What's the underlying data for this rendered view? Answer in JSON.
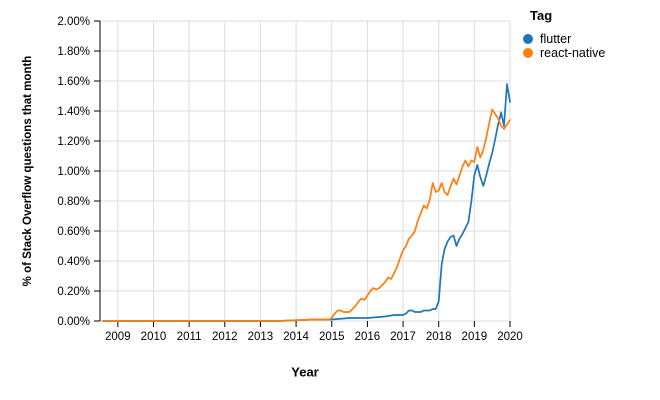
{
  "chart_data": {
    "type": "line",
    "title": "",
    "xlabel": "Year",
    "ylabel": "% of Stack Overflow questions that month",
    "xlim": [
      2008.5,
      2020
    ],
    "ylim": [
      0,
      2
    ],
    "grid": true,
    "x_ticks": [
      {
        "value": 2009,
        "label": "2009"
      },
      {
        "value": 2010,
        "label": "2010"
      },
      {
        "value": 2011,
        "label": "2011"
      },
      {
        "value": 2012,
        "label": "2012"
      },
      {
        "value": 2013,
        "label": "2013"
      },
      {
        "value": 2014,
        "label": "2014"
      },
      {
        "value": 2015,
        "label": "2015"
      },
      {
        "value": 2016,
        "label": "2016"
      },
      {
        "value": 2017,
        "label": "2017"
      },
      {
        "value": 2018,
        "label": "2018"
      },
      {
        "value": 2019,
        "label": "2019"
      },
      {
        "value": 2020,
        "label": "2020"
      }
    ],
    "y_ticks": [
      {
        "value": 0.0,
        "label": "0.00%"
      },
      {
        "value": 0.2,
        "label": "0.20%"
      },
      {
        "value": 0.4,
        "label": "0.40%"
      },
      {
        "value": 0.6,
        "label": "0.60%"
      },
      {
        "value": 0.8,
        "label": "0.80%"
      },
      {
        "value": 1.0,
        "label": "1.00%"
      },
      {
        "value": 1.2,
        "label": "1.20%"
      },
      {
        "value": 1.4,
        "label": "1.40%"
      },
      {
        "value": 1.6,
        "label": "1.60%"
      },
      {
        "value": 1.8,
        "label": "1.80%"
      },
      {
        "value": 2.0,
        "label": "2.00%"
      }
    ],
    "legend": {
      "title": "Tag",
      "position": "top-right",
      "entries": [
        {
          "label": "flutter",
          "color": "#1f77b4"
        },
        {
          "label": "react-native",
          "color": "#ff7f0e"
        }
      ]
    },
    "series": [
      {
        "name": "flutter",
        "color": "#1f77b4",
        "points": [
          [
            2008.58,
            0.0
          ],
          [
            2009.5,
            0.0
          ],
          [
            2010.5,
            0.0
          ],
          [
            2011.5,
            0.0
          ],
          [
            2012.5,
            0.0
          ],
          [
            2013.5,
            0.0
          ],
          [
            2014.5,
            0.01
          ],
          [
            2015.0,
            0.01
          ],
          [
            2015.5,
            0.02
          ],
          [
            2016.0,
            0.02
          ],
          [
            2016.5,
            0.03
          ],
          [
            2016.75,
            0.04
          ],
          [
            2017.0,
            0.04
          ],
          [
            2017.083,
            0.05
          ],
          [
            2017.167,
            0.07
          ],
          [
            2017.25,
            0.07
          ],
          [
            2017.333,
            0.06
          ],
          [
            2017.417,
            0.06
          ],
          [
            2017.5,
            0.06
          ],
          [
            2017.583,
            0.07
          ],
          [
            2017.667,
            0.07
          ],
          [
            2017.75,
            0.07
          ],
          [
            2017.833,
            0.08
          ],
          [
            2017.917,
            0.08
          ],
          [
            2018.0,
            0.13
          ],
          [
            2018.083,
            0.38
          ],
          [
            2018.167,
            0.48
          ],
          [
            2018.25,
            0.53
          ],
          [
            2018.333,
            0.56
          ],
          [
            2018.417,
            0.57
          ],
          [
            2018.5,
            0.5
          ],
          [
            2018.583,
            0.55
          ],
          [
            2018.667,
            0.58
          ],
          [
            2018.75,
            0.62
          ],
          [
            2018.833,
            0.66
          ],
          [
            2018.917,
            0.8
          ],
          [
            2019.0,
            0.97
          ],
          [
            2019.083,
            1.04
          ],
          [
            2019.167,
            0.96
          ],
          [
            2019.25,
            0.9
          ],
          [
            2019.333,
            0.97
          ],
          [
            2019.417,
            1.05
          ],
          [
            2019.5,
            1.12
          ],
          [
            2019.583,
            1.21
          ],
          [
            2019.667,
            1.31
          ],
          [
            2019.75,
            1.39
          ],
          [
            2019.833,
            1.3
          ],
          [
            2019.917,
            1.58
          ],
          [
            2020.0,
            1.46
          ]
        ]
      },
      {
        "name": "react-native",
        "color": "#ff7f0e",
        "points": [
          [
            2008.58,
            0.0
          ],
          [
            2009.5,
            0.0
          ],
          [
            2010.5,
            0.0
          ],
          [
            2011.5,
            0.0
          ],
          [
            2012.5,
            0.0
          ],
          [
            2013.5,
            0.0
          ],
          [
            2014.5,
            0.01
          ],
          [
            2014.917,
            0.01
          ],
          [
            2015.0,
            0.02
          ],
          [
            2015.083,
            0.05
          ],
          [
            2015.167,
            0.07
          ],
          [
            2015.25,
            0.07
          ],
          [
            2015.333,
            0.06
          ],
          [
            2015.417,
            0.06
          ],
          [
            2015.5,
            0.06
          ],
          [
            2015.583,
            0.08
          ],
          [
            2015.667,
            0.1
          ],
          [
            2015.75,
            0.13
          ],
          [
            2015.833,
            0.15
          ],
          [
            2015.917,
            0.14
          ],
          [
            2016.0,
            0.17
          ],
          [
            2016.083,
            0.2
          ],
          [
            2016.167,
            0.22
          ],
          [
            2016.25,
            0.21
          ],
          [
            2016.333,
            0.22
          ],
          [
            2016.417,
            0.24
          ],
          [
            2016.5,
            0.26
          ],
          [
            2016.583,
            0.29
          ],
          [
            2016.667,
            0.28
          ],
          [
            2016.75,
            0.32
          ],
          [
            2016.833,
            0.36
          ],
          [
            2016.917,
            0.42
          ],
          [
            2017.0,
            0.47
          ],
          [
            2017.083,
            0.5
          ],
          [
            2017.167,
            0.55
          ],
          [
            2017.25,
            0.57
          ],
          [
            2017.333,
            0.6
          ],
          [
            2017.417,
            0.67
          ],
          [
            2017.5,
            0.72
          ],
          [
            2017.583,
            0.77
          ],
          [
            2017.667,
            0.75
          ],
          [
            2017.75,
            0.81
          ],
          [
            2017.833,
            0.92
          ],
          [
            2017.917,
            0.86
          ],
          [
            2018.0,
            0.87
          ],
          [
            2018.083,
            0.92
          ],
          [
            2018.167,
            0.86
          ],
          [
            2018.25,
            0.84
          ],
          [
            2018.333,
            0.9
          ],
          [
            2018.417,
            0.95
          ],
          [
            2018.5,
            0.91
          ],
          [
            2018.583,
            0.97
          ],
          [
            2018.667,
            1.03
          ],
          [
            2018.75,
            1.07
          ],
          [
            2018.833,
            1.03
          ],
          [
            2018.917,
            1.07
          ],
          [
            2019.0,
            1.06
          ],
          [
            2019.083,
            1.16
          ],
          [
            2019.167,
            1.09
          ],
          [
            2019.25,
            1.14
          ],
          [
            2019.333,
            1.22
          ],
          [
            2019.417,
            1.32
          ],
          [
            2019.5,
            1.41
          ],
          [
            2019.583,
            1.38
          ],
          [
            2019.667,
            1.35
          ],
          [
            2019.75,
            1.3
          ],
          [
            2019.833,
            1.28
          ],
          [
            2019.917,
            1.31
          ],
          [
            2020.0,
            1.34
          ]
        ]
      }
    ]
  },
  "colors": {
    "grid": "#dcdcdc",
    "axis": "#000000",
    "background": "#ffffff"
  }
}
